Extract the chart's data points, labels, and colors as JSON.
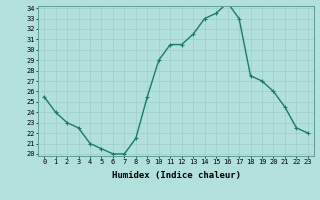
{
  "x": [
    0,
    1,
    2,
    3,
    4,
    5,
    6,
    7,
    8,
    9,
    10,
    11,
    12,
    13,
    14,
    15,
    16,
    17,
    18,
    19,
    20,
    21,
    22,
    23
  ],
  "y": [
    25.5,
    24.0,
    23.0,
    22.5,
    21.0,
    20.5,
    20.0,
    20.0,
    21.5,
    25.5,
    29.0,
    30.5,
    30.5,
    31.5,
    33.0,
    33.5,
    34.5,
    33.0,
    27.5,
    27.0,
    26.0,
    24.5,
    22.5,
    22.0
  ],
  "xlabel": "Humidex (Indice chaleur)",
  "line_color": "#1a7a6e",
  "marker_color": "#1a7a6e",
  "bg_color": "#b2e0da",
  "grid_color": "#9ecdc7",
  "ylim": [
    20,
    34
  ],
  "xlim": [
    -0.5,
    23.5
  ],
  "yticks": [
    20,
    21,
    22,
    23,
    24,
    25,
    26,
    27,
    28,
    29,
    30,
    31,
    32,
    33,
    34
  ],
  "xticks": [
    0,
    1,
    2,
    3,
    4,
    5,
    6,
    7,
    8,
    9,
    10,
    11,
    12,
    13,
    14,
    15,
    16,
    17,
    18,
    19,
    20,
    21,
    22,
    23
  ],
  "tick_fontsize": 5,
  "xlabel_fontsize": 6.5,
  "linewidth": 1.0,
  "markersize": 2.5
}
